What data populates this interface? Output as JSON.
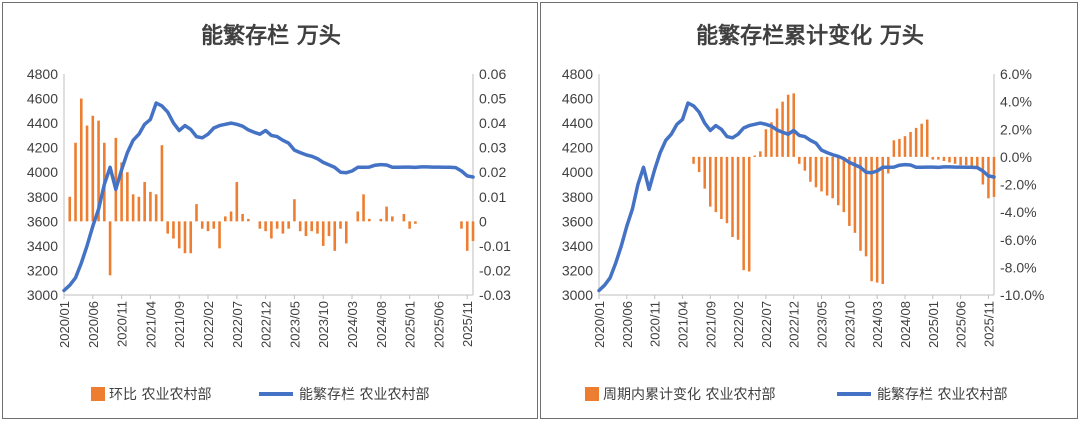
{
  "chart_data": [
    {
      "type": "bar+line",
      "title": "能繁存栏 万头",
      "colors": {
        "bar": "#ED7D31",
        "line": "#4472C4"
      },
      "left_axis": {
        "ylim": [
          3000,
          4800
        ],
        "ticks": [
          "3000",
          "3200",
          "3400",
          "3600",
          "3800",
          "4000",
          "4200",
          "4400",
          "4600",
          "4800"
        ]
      },
      "right_axis": {
        "ylim": [
          -0.03,
          0.06
        ],
        "ticks": [
          "-0.03",
          "-0.02",
          "-0.01",
          "0",
          "0.01",
          "0.02",
          "0.03",
          "0.04",
          "0.05",
          "0.06"
        ]
      },
      "x_ticks": [
        "2020/01",
        "2020/06",
        "2020/11",
        "2021/04",
        "2021/09",
        "2022/02",
        "2022/07",
        "2022/12",
        "2023/05",
        "2023/10",
        "2024/03",
        "2024/08",
        "2025/01",
        "2025/06",
        "2025/11"
      ],
      "x_tick_every": 5,
      "n_periods": 72,
      "legend": [
        "环比 农业农村部",
        "能繁存栏 农业农村部"
      ],
      "series": [
        {
          "name": "能繁存栏 农业农村部",
          "axis": "left",
          "type": "line",
          "values": [
            3037,
            3080,
            3140,
            3260,
            3400,
            3560,
            3700,
            3900,
            4040,
            3860,
            4020,
            4160,
            4260,
            4310,
            4390,
            4430,
            4564,
            4540,
            4490,
            4400,
            4340,
            4380,
            4350,
            4290,
            4280,
            4310,
            4360,
            4380,
            4390,
            4400,
            4390,
            4375,
            4345,
            4325,
            4310,
            4340,
            4300,
            4290,
            4260,
            4236,
            4180,
            4160,
            4142,
            4130,
            4110,
            4080,
            4060,
            4039,
            4000,
            3996,
            4010,
            4040,
            4040,
            4042,
            4057,
            4062,
            4059,
            4041,
            4041,
            4042,
            4042,
            4039,
            4043,
            4043,
            4042,
            4042,
            4041,
            4040,
            4038,
            4010,
            3970,
            3961
          ]
        },
        {
          "name": "环比 农业农村部",
          "axis": "right",
          "type": "bar",
          "values": [
            0.0,
            0.01,
            0.032,
            0.05,
            0.039,
            0.043,
            0.041,
            0.032,
            -0.022,
            0.034,
            0.024,
            0.02,
            0.011,
            0.01,
            0.016,
            0.012,
            0.011,
            0.031,
            -0.005,
            -0.007,
            -0.011,
            -0.013,
            -0.013,
            0.007,
            -0.003,
            -0.004,
            -0.003,
            -0.011,
            0.002,
            0.004,
            0.016,
            0.003,
            0.001,
            0.0,
            -0.003,
            -0.004,
            -0.007,
            -0.003,
            -0.005,
            -0.003,
            0.009,
            -0.004,
            -0.006,
            -0.004,
            -0.005,
            -0.01,
            -0.006,
            -0.012,
            -0.003,
            -0.009,
            0.0,
            0.004,
            0.011,
            0.001,
            0.0,
            0.001,
            0.006,
            0.002,
            0.0,
            0.003,
            -0.003,
            -0.001,
            0.0,
            0.0,
            0.0,
            0.0,
            0.0,
            0.0,
            0.0,
            -0.003,
            -0.012,
            -0.008
          ]
        }
      ]
    },
    {
      "type": "bar+line",
      "title": "能繁存栏累计变化 万头",
      "colors": {
        "bar": "#ED7D31",
        "line": "#4472C4"
      },
      "left_axis": {
        "ylim": [
          3000,
          4800
        ],
        "ticks": [
          "3000",
          "3200",
          "3400",
          "3600",
          "3800",
          "4000",
          "4200",
          "4400",
          "4600",
          "4800"
        ]
      },
      "right_axis": {
        "ylim": [
          -0.1,
          0.06
        ],
        "ticks": [
          "-10.0%",
          "-8.0%",
          "-6.0%",
          "-4.0%",
          "-2.0%",
          "0.0%",
          "2.0%",
          "4.0%",
          "6.0%"
        ]
      },
      "x_ticks": [
        "2020/01",
        "2020/06",
        "2020/11",
        "2021/04",
        "2021/09",
        "2022/02",
        "2022/07",
        "2022/12",
        "2023/05",
        "2023/10",
        "2024/03",
        "2024/08",
        "2025/01",
        "2025/06",
        "2025/11"
      ],
      "x_tick_every": 5,
      "n_periods": 72,
      "legend": [
        "周期内累计变化 农业农村部",
        "能繁存栏 农业农村部"
      ],
      "series": [
        {
          "name": "能繁存栏 农业农村部",
          "axis": "left",
          "type": "line",
          "values": [
            3037,
            3080,
            3140,
            3260,
            3400,
            3560,
            3700,
            3900,
            4040,
            3860,
            4020,
            4160,
            4260,
            4310,
            4390,
            4430,
            4564,
            4540,
            4490,
            4400,
            4340,
            4380,
            4350,
            4290,
            4280,
            4310,
            4360,
            4380,
            4390,
            4400,
            4390,
            4375,
            4345,
            4325,
            4310,
            4340,
            4300,
            4290,
            4260,
            4236,
            4180,
            4160,
            4142,
            4130,
            4110,
            4080,
            4060,
            4039,
            4000,
            3996,
            4010,
            4040,
            4040,
            4042,
            4057,
            4062,
            4059,
            4041,
            4041,
            4042,
            4042,
            4039,
            4043,
            4043,
            4042,
            4042,
            4041,
            4040,
            4038,
            4010,
            3970,
            3961
          ]
        },
        {
          "name": "周期内累计变化 农业农村部",
          "axis": "right",
          "type": "bar",
          "values": [
            0,
            0,
            0,
            0,
            0,
            0,
            0,
            0,
            0,
            0,
            0,
            0,
            0,
            0,
            0,
            0,
            0,
            -0.005,
            -0.011,
            -0.023,
            -0.036,
            -0.04,
            -0.045,
            -0.048,
            -0.058,
            -0.06,
            -0.082,
            -0.083,
            0.001,
            0.004,
            0.02,
            0.025,
            0.035,
            0.04,
            0.045,
            0.046,
            -0.005,
            -0.01,
            -0.018,
            -0.022,
            -0.025,
            -0.028,
            -0.03,
            -0.035,
            -0.04,
            -0.05,
            -0.055,
            -0.068,
            -0.072,
            -0.09,
            -0.091,
            -0.092,
            -0.012,
            0.012,
            0.013,
            0.015,
            0.018,
            0.021,
            0.024,
            0.027,
            -0.002,
            -0.002,
            -0.003,
            -0.004,
            -0.005,
            -0.006,
            -0.006,
            -0.007,
            -0.008,
            -0.02,
            -0.03,
            -0.029
          ]
        }
      ]
    }
  ]
}
